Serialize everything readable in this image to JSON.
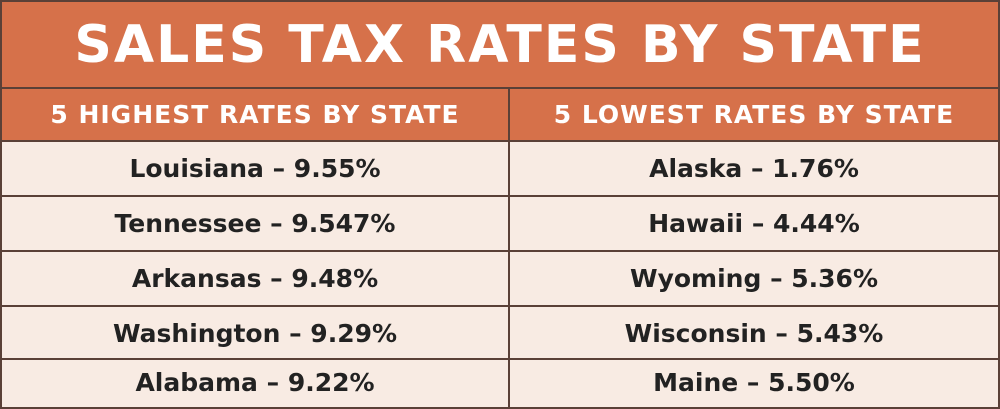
{
  "title": "SALES TAX RATES BY STATE",
  "columns": {
    "highest": {
      "header": "5 HIGHEST RATES BY STATE",
      "rows": [
        "Louisiana – 9.55%",
        "Tennessee – 9.547%",
        "Arkansas – 9.48%",
        "Washington – 9.29%",
        "Alabama – 9.22%"
      ]
    },
    "lowest": {
      "header": "5 LOWEST RATES BY STATE",
      "rows": [
        "Alaska – 1.76%",
        "Hawaii – 4.44%",
        "Wyoming – 5.36%",
        "Wisconsin – 5.43%",
        "Maine – 5.50%"
      ]
    }
  },
  "colors": {
    "header_bg": "#d6714a",
    "cell_bg": "#f8ebe3",
    "border": "#5a4037",
    "header_text": "#ffffff",
    "cell_text": "#222222"
  }
}
